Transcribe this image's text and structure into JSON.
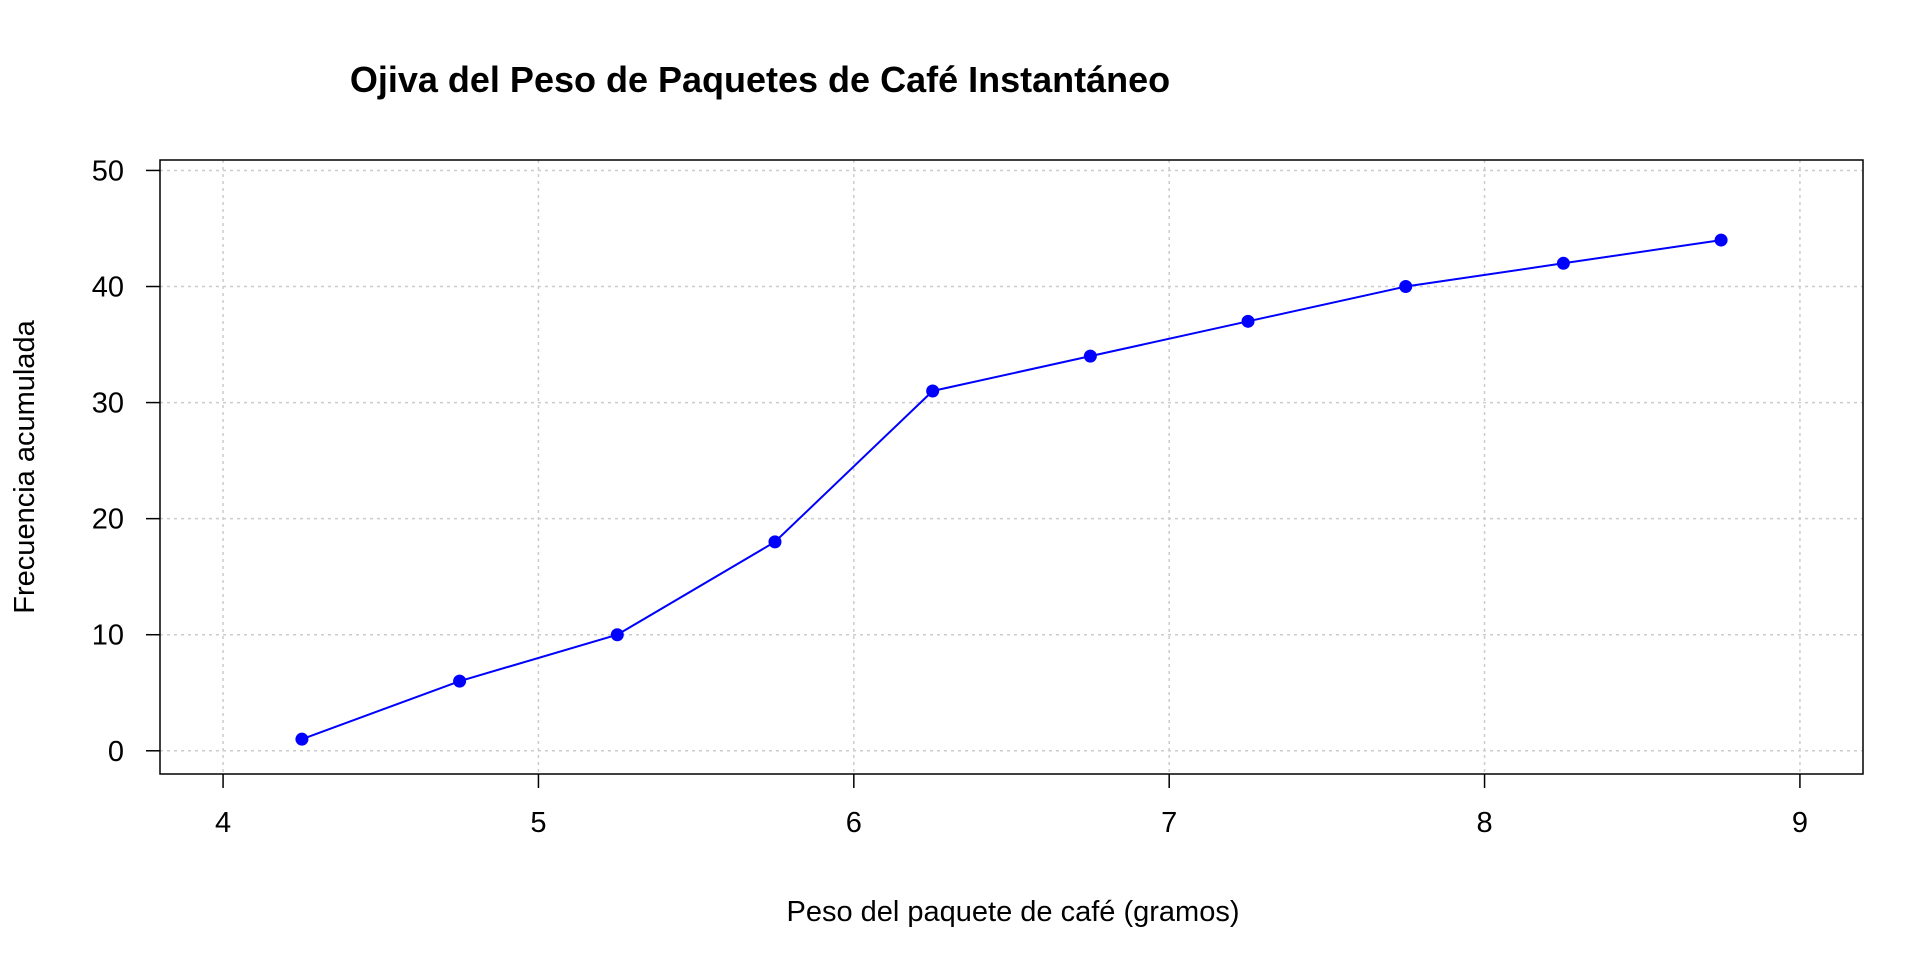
{
  "chart_data": {
    "type": "line",
    "title": "Ojiva del Peso de Paquetes de Café Instantáneo",
    "xlabel": "Peso del paquete de café (gramos)",
    "ylabel": "Frecuencia acumulada",
    "x": [
      4.25,
      4.75,
      5.25,
      5.75,
      6.25,
      6.75,
      7.25,
      7.75,
      8.25,
      8.75
    ],
    "series": [
      {
        "values": [
          1,
          6,
          10,
          18,
          31,
          34,
          37,
          40,
          42,
          44
        ]
      }
    ],
    "xlim": [
      3.8,
      9.2
    ],
    "ylim": [
      -2,
      50.9
    ],
    "xticks": [
      "4",
      "5",
      "6",
      "7",
      "8",
      "9"
    ],
    "yticks": [
      "0",
      "10",
      "20",
      "30",
      "40",
      "50"
    ],
    "grid": true,
    "line_color": "#0000ff",
    "grid_color": "#cccccc"
  }
}
